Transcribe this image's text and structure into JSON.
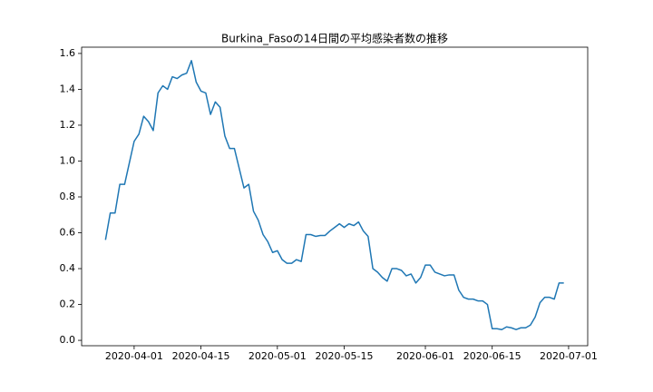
{
  "chart_data": {
    "type": "line",
    "title": "Burkina_Fasoの14日間の平均感染者数の推移",
    "x": [
      "2020-03-26",
      "2020-03-27",
      "2020-03-28",
      "2020-03-29",
      "2020-03-30",
      "2020-03-31",
      "2020-04-01",
      "2020-04-02",
      "2020-04-03",
      "2020-04-04",
      "2020-04-05",
      "2020-04-06",
      "2020-04-07",
      "2020-04-08",
      "2020-04-09",
      "2020-04-10",
      "2020-04-11",
      "2020-04-12",
      "2020-04-13",
      "2020-04-14",
      "2020-04-15",
      "2020-04-16",
      "2020-04-17",
      "2020-04-18",
      "2020-04-19",
      "2020-04-20",
      "2020-04-21",
      "2020-04-22",
      "2020-04-23",
      "2020-04-24",
      "2020-04-25",
      "2020-04-26",
      "2020-04-27",
      "2020-04-28",
      "2020-04-29",
      "2020-04-30",
      "2020-05-01",
      "2020-05-02",
      "2020-05-03",
      "2020-05-04",
      "2020-05-05",
      "2020-05-06",
      "2020-05-07",
      "2020-05-08",
      "2020-05-09",
      "2020-05-10",
      "2020-05-11",
      "2020-05-12",
      "2020-05-13",
      "2020-05-14",
      "2020-05-15",
      "2020-05-16",
      "2020-05-17",
      "2020-05-18",
      "2020-05-19",
      "2020-05-20",
      "2020-05-21",
      "2020-05-22",
      "2020-05-23",
      "2020-05-24",
      "2020-05-25",
      "2020-05-26",
      "2020-05-27",
      "2020-05-28",
      "2020-05-29",
      "2020-05-30",
      "2020-05-31",
      "2020-06-01",
      "2020-06-02",
      "2020-06-03",
      "2020-06-04",
      "2020-06-05",
      "2020-06-06",
      "2020-06-07",
      "2020-06-08",
      "2020-06-09",
      "2020-06-10",
      "2020-06-11",
      "2020-06-12",
      "2020-06-13",
      "2020-06-14",
      "2020-06-15",
      "2020-06-16",
      "2020-06-17",
      "2020-06-18",
      "2020-06-19",
      "2020-06-20",
      "2020-06-21",
      "2020-06-22",
      "2020-06-23",
      "2020-06-24",
      "2020-06-25",
      "2020-06-26",
      "2020-06-27",
      "2020-06-28",
      "2020-06-29",
      "2020-06-30"
    ],
    "series": [
      {
        "name": "Burkina_Faso",
        "color": "#1f77b4",
        "values": [
          0.56,
          0.71,
          0.71,
          0.87,
          0.87,
          0.99,
          1.11,
          1.15,
          1.25,
          1.22,
          1.17,
          1.38,
          1.42,
          1.4,
          1.47,
          1.46,
          1.48,
          1.49,
          1.56,
          1.44,
          1.39,
          1.38,
          1.26,
          1.33,
          1.3,
          1.14,
          1.07,
          1.07,
          0.96,
          0.85,
          0.87,
          0.72,
          0.67,
          0.59,
          0.55,
          0.49,
          0.5,
          0.45,
          0.43,
          0.43,
          0.45,
          0.44,
          0.59,
          0.59,
          0.58,
          0.585,
          0.585,
          0.61,
          0.63,
          0.65,
          0.63,
          0.65,
          0.64,
          0.66,
          0.61,
          0.58,
          0.4,
          0.38,
          0.35,
          0.33,
          0.4,
          0.4,
          0.39,
          0.36,
          0.37,
          0.32,
          0.35,
          0.42,
          0.42,
          0.38,
          0.37,
          0.36,
          0.365,
          0.365,
          0.28,
          0.24,
          0.23,
          0.23,
          0.22,
          0.22,
          0.2,
          0.065,
          0.065,
          0.06,
          0.075,
          0.07,
          0.06,
          0.07,
          0.07,
          0.085,
          0.13,
          0.21,
          0.24,
          0.24,
          0.23,
          0.32,
          0.32
        ]
      }
    ],
    "xlim": [
      "2020-03-21",
      "2020-07-05"
    ],
    "xticks": [
      "2020-04-01",
      "2020-04-15",
      "2020-05-01",
      "2020-05-15",
      "2020-06-01",
      "2020-06-15",
      "2020-07-01"
    ],
    "ylim": [
      -0.03,
      1.635
    ],
    "yticks": [
      {
        "value": 0,
        "label": "0.0"
      },
      {
        "value": 0.2,
        "label": "0.2"
      },
      {
        "value": 0.4,
        "label": "0.4"
      },
      {
        "value": 0.6,
        "label": "0.6"
      },
      {
        "value": 0.8,
        "label": "0.8"
      },
      {
        "value": 1.0,
        "label": "1.0"
      },
      {
        "value": 1.2,
        "label": "1.2"
      },
      {
        "value": 1.4,
        "label": "1.4"
      },
      {
        "value": 1.6,
        "label": "1.6"
      }
    ],
    "grid": false
  }
}
